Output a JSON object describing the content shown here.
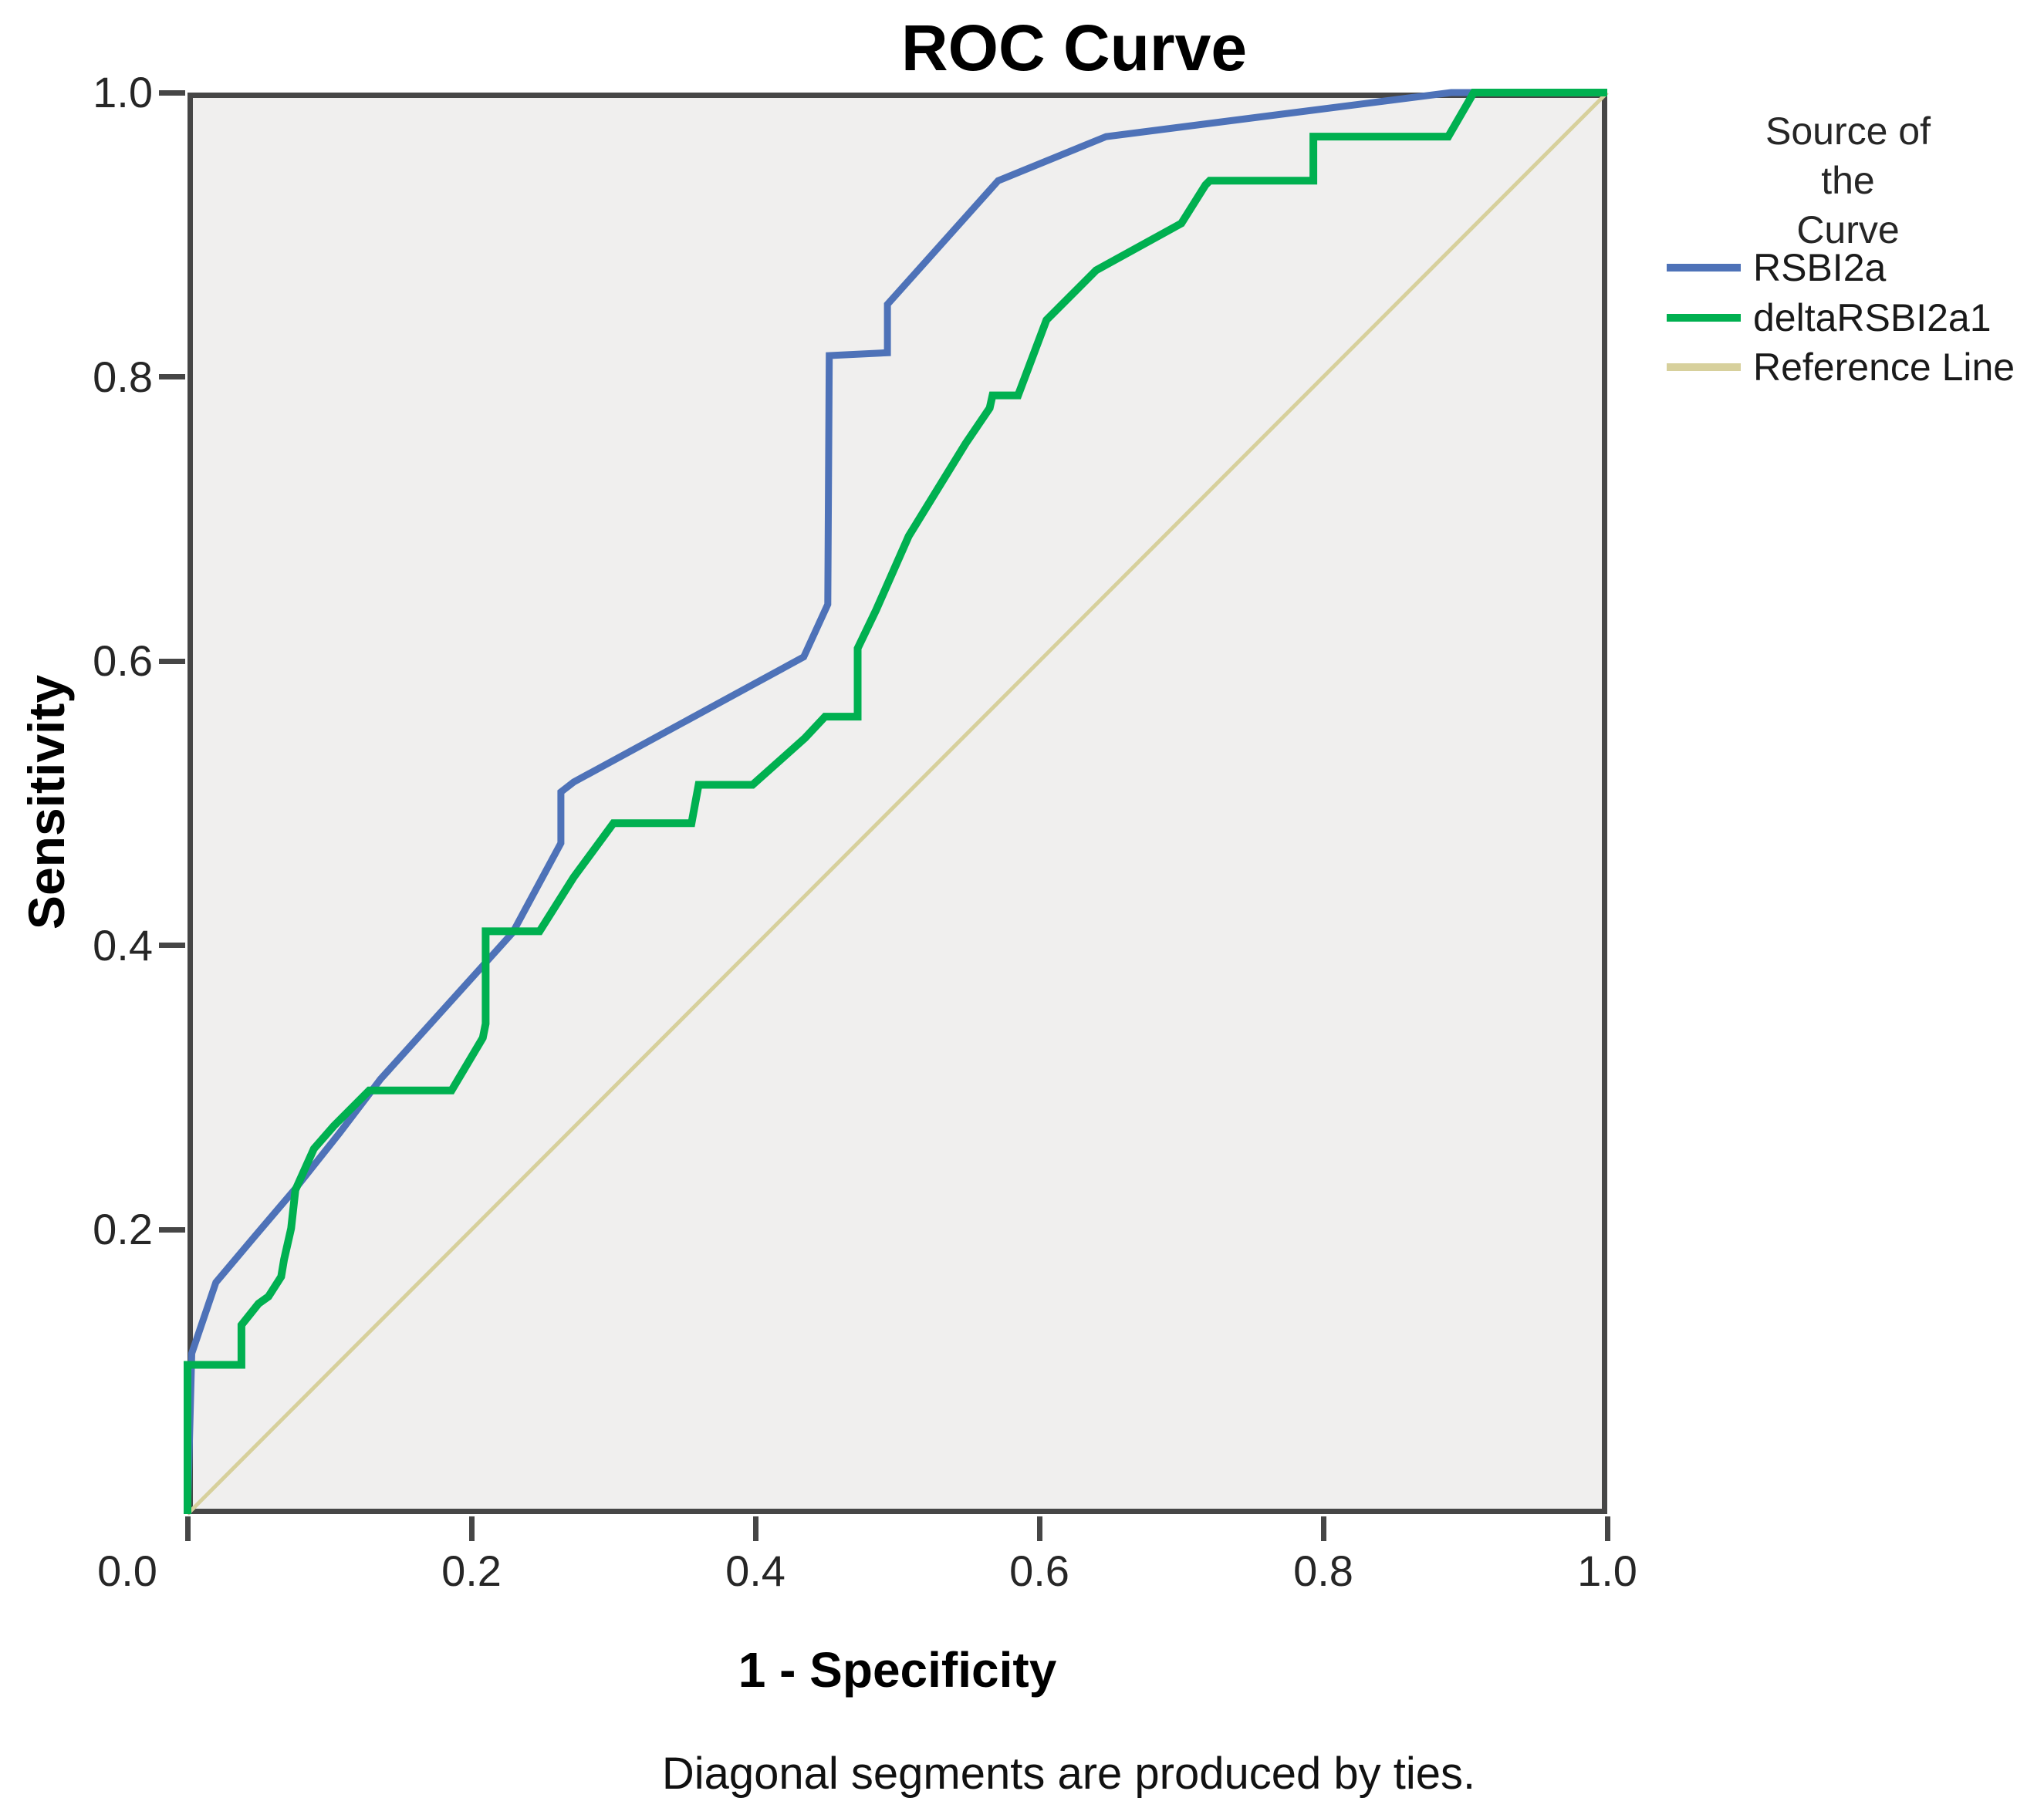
{
  "footnote": "Diagonal segments are produced by ties.",
  "chart_data": {
    "type": "line",
    "title": "ROC Curve",
    "xlabel": "1 - Specificity",
    "ylabel": "Sensitivity",
    "xlim": [
      0,
      1
    ],
    "ylim": [
      0,
      1
    ],
    "grid": false,
    "legend_position": "right",
    "legend_title": "Source of the\nCurve",
    "x_tick_labels": [
      "0.0",
      "0.2",
      "0.4",
      "0.6",
      "0.8",
      "1.0"
    ],
    "y_tick_labels": [
      "1.0",
      "0.8",
      "0.6",
      "0.4",
      "0.2"
    ],
    "plot_bg_color": "#f0efee",
    "frame_color": "#464646",
    "series": [
      {
        "name": "RSBI2a",
        "color": "#4e72b8",
        "points": [
          [
            0,
            0
          ],
          [
            0.003,
            0.113
          ],
          [
            0.02,
            0.163
          ],
          [
            0.047,
            0.195
          ],
          [
            0.076,
            0.229
          ],
          [
            0.107,
            0.268
          ],
          [
            0.136,
            0.306
          ],
          [
            0.229,
            0.409
          ],
          [
            0.263,
            0.472
          ],
          [
            0.263,
            0.508
          ],
          [
            0.272,
            0.515
          ],
          [
            0.434,
            0.603
          ],
          [
            0.451,
            0.64
          ],
          [
            0.452,
            0.815
          ],
          [
            0.493,
            0.817
          ],
          [
            0.493,
            0.851
          ],
          [
            0.571,
            0.938
          ],
          [
            0.647,
            0.969
          ],
          [
            0.89,
            1
          ],
          [
            1,
            1
          ]
        ]
      },
      {
        "name": "deltaRSBI2a1",
        "color": "#00b050",
        "points": [
          [
            0,
            0
          ],
          [
            0,
            0.105
          ],
          [
            0.038,
            0.105
          ],
          [
            0.038,
            0.133
          ],
          [
            0.05,
            0.148
          ],
          [
            0.057,
            0.153
          ],
          [
            0.066,
            0.167
          ],
          [
            0.068,
            0.179
          ],
          [
            0.073,
            0.201
          ],
          [
            0.076,
            0.228
          ],
          [
            0.089,
            0.257
          ],
          [
            0.103,
            0.273
          ],
          [
            0.128,
            0.298
          ],
          [
            0.186,
            0.298
          ],
          [
            0.208,
            0.335
          ],
          [
            0.21,
            0.345
          ],
          [
            0.21,
            0.41
          ],
          [
            0.248,
            0.41
          ],
          [
            0.272,
            0.448
          ],
          [
            0.3,
            0.486
          ],
          [
            0.355,
            0.486
          ],
          [
            0.36,
            0.513
          ],
          [
            0.398,
            0.513
          ],
          [
            0.435,
            0.546
          ],
          [
            0.449,
            0.561
          ],
          [
            0.472,
            0.561
          ],
          [
            0.472,
            0.609
          ],
          [
            0.485,
            0.636
          ],
          [
            0.508,
            0.688
          ],
          [
            0.548,
            0.753
          ],
          [
            0.565,
            0.778
          ],
          [
            0.567,
            0.787
          ],
          [
            0.585,
            0.787
          ],
          [
            0.605,
            0.84
          ],
          [
            0.64,
            0.875
          ],
          [
            0.7,
            0.908
          ],
          [
            0.717,
            0.935
          ],
          [
            0.72,
            0.938
          ],
          [
            0.793,
            0.938
          ],
          [
            0.793,
            0.969
          ],
          [
            0.888,
            0.969
          ],
          [
            0.906,
            1
          ],
          [
            1,
            1
          ]
        ]
      },
      {
        "name": "Reference Line",
        "color": "#d7d09c",
        "points": [
          [
            0,
            0
          ],
          [
            1,
            1
          ]
        ]
      }
    ]
  }
}
